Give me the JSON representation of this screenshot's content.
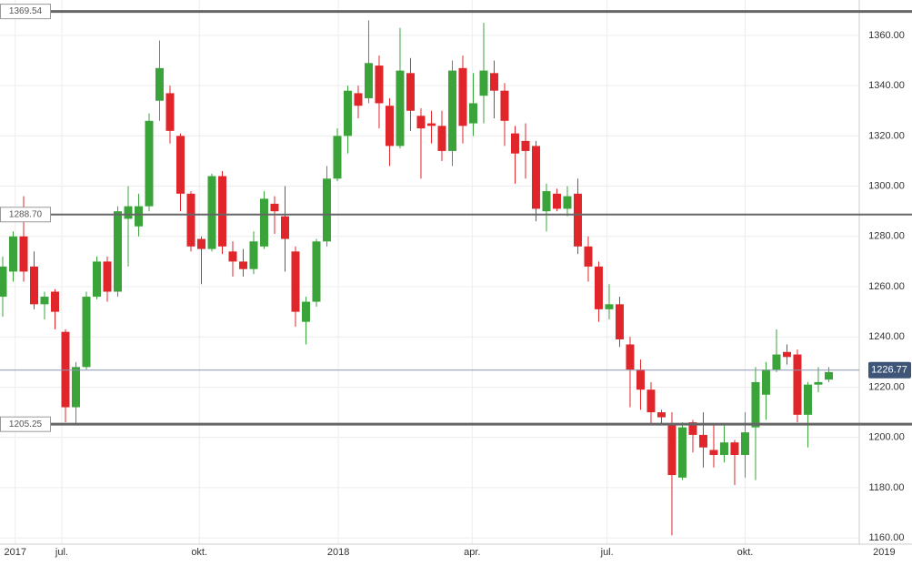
{
  "chart_data": {
    "type": "candlestick",
    "x": [
      0,
      1,
      2,
      3,
      4,
      5,
      6,
      7,
      8,
      9,
      10,
      11,
      12,
      13,
      14,
      15,
      16,
      17,
      18,
      19,
      20,
      21,
      22,
      23,
      24,
      25,
      26,
      27,
      28,
      29,
      30,
      31,
      32,
      33,
      34,
      35,
      36,
      37,
      38,
      39,
      40,
      41,
      42,
      43,
      44,
      45,
      46,
      47,
      48,
      49,
      50,
      51,
      52,
      53,
      54,
      55,
      56,
      57,
      58,
      59,
      60,
      61,
      62,
      63,
      64,
      65,
      66,
      67,
      68,
      69,
      70,
      71,
      72,
      73,
      74,
      75,
      76,
      77,
      78,
      79
    ],
    "open": [
      1256,
      1266,
      1280,
      1268,
      1253,
      1258,
      1242,
      1212,
      1228,
      1256,
      1270,
      1258,
      1287,
      1284,
      1292,
      1334,
      1337,
      1320,
      1297,
      1279,
      1275,
      1304,
      1274,
      1270,
      1267,
      1276,
      1293,
      1288,
      1274,
      1246,
      1254,
      1278,
      1303,
      1320,
      1337,
      1335,
      1348,
      1332,
      1316,
      1345,
      1328,
      1325,
      1324,
      1314,
      1347,
      1325,
      1336,
      1345,
      1338,
      1321,
      1318,
      1316,
      1290,
      1297,
      1291,
      1297,
      1276,
      1268,
      1251,
      1253,
      1237,
      1227,
      1219,
      1210,
      1205,
      1184,
      1206,
      1201,
      1195,
      1193,
      1198,
      1193,
      1204,
      1217,
      1227,
      1234,
      1233,
      1209,
      1221,
      1223
    ],
    "high": [
      1272,
      1282,
      1296,
      1274,
      1258,
      1259,
      1243,
      1230,
      1258,
      1272,
      1272,
      1292,
      1300,
      1297,
      1329,
      1358,
      1340,
      1321,
      1298,
      1280,
      1305,
      1306,
      1278,
      1275,
      1282,
      1298,
      1296,
      1300,
      1276,
      1256,
      1279,
      1308,
      1323,
      1340,
      1340,
      1366,
      1352,
      1335,
      1363,
      1351,
      1331,
      1330,
      1330,
      1350,
      1352,
      1345,
      1365,
      1350,
      1341,
      1324,
      1325,
      1318,
      1301,
      1299,
      1300,
      1303,
      1280,
      1270,
      1261,
      1256,
      1240,
      1231,
      1222,
      1211,
      1210,
      1206,
      1207,
      1210,
      1205,
      1205,
      1199,
      1210,
      1228,
      1230,
      1243,
      1237,
      1235,
      1222,
      1228,
      1228
    ],
    "low": [
      1248,
      1262,
      1262,
      1251,
      1247,
      1243,
      1206,
      1205,
      1227,
      1255,
      1254,
      1256,
      1268,
      1280,
      1290,
      1326,
      1317,
      1290,
      1274,
      1261,
      1274,
      1273,
      1264,
      1264,
      1265,
      1275,
      1281,
      1266,
      1244,
      1237,
      1252,
      1276,
      1302,
      1313,
      1327,
      1333,
      1323,
      1308,
      1315,
      1322,
      1303,
      1317,
      1310,
      1308,
      1317,
      1320,
      1325,
      1327,
      1316,
      1301,
      1303,
      1286,
      1282,
      1290,
      1288,
      1273,
      1262,
      1246,
      1247,
      1236,
      1212,
      1211,
      1205,
      1205,
      1161,
      1183,
      1194,
      1188,
      1188,
      1190,
      1181,
      1184,
      1183,
      1207,
      1226,
      1229,
      1206,
      1196,
      1218,
      1222
    ],
    "close": [
      1268,
      1280,
      1266,
      1253,
      1256,
      1250,
      1212,
      1228,
      1256,
      1270,
      1258,
      1290,
      1292,
      1292,
      1326,
      1347,
      1322,
      1297,
      1276,
      1275,
      1304,
      1276,
      1270,
      1267,
      1278,
      1295,
      1290,
      1279,
      1250,
      1254,
      1278,
      1303,
      1320,
      1338,
      1332,
      1349,
      1333,
      1316,
      1346,
      1330,
      1323,
      1324,
      1314,
      1346,
      1324,
      1333,
      1346,
      1338,
      1326,
      1313,
      1314,
      1291,
      1298,
      1291,
      1296,
      1276,
      1268,
      1251,
      1253,
      1239,
      1227,
      1219,
      1210,
      1208,
      1185,
      1204,
      1201,
      1196,
      1193,
      1198,
      1193,
      1202,
      1222,
      1227,
      1233,
      1232,
      1209,
      1221,
      1222,
      1226
    ],
    "up_color": "#3aa43a",
    "down_color": "#e0262a",
    "xlim": [
      -0.26,
      86.96
    ],
    "xticks": [
      {
        "value": 1.2,
        "label": "2017"
      },
      {
        "value": 5.65,
        "label": "jul."
      },
      {
        "value": 18.8,
        "label": "okt."
      },
      {
        "value": 32.1,
        "label": "2018"
      },
      {
        "value": 44.9,
        "label": "apr."
      },
      {
        "value": 57.8,
        "label": "jul."
      },
      {
        "value": 71.0,
        "label": "okt."
      },
      {
        "value": 84.3,
        "label": "2019"
      }
    ],
    "ylim": [
      1157.5,
      1374.1
    ],
    "yticks": [
      {
        "value": 1160,
        "label": "1160.00"
      },
      {
        "value": 1180,
        "label": "1180.00"
      },
      {
        "value": 1200,
        "label": "1200.00"
      },
      {
        "value": 1220,
        "label": "1220.00"
      },
      {
        "value": 1240,
        "label": "1240.00"
      },
      {
        "value": 1260,
        "label": "1260.00"
      },
      {
        "value": 1280,
        "label": "1280.00"
      },
      {
        "value": 1300,
        "label": "1300.00"
      },
      {
        "value": 1320,
        "label": "1320.00"
      },
      {
        "value": 1340,
        "label": "1340.00"
      },
      {
        "value": 1360,
        "label": "1360.00"
      }
    ],
    "levels": [
      1369.54,
      {
        "value": 1288.7,
        "label": "1288.70"
      },
      1205.25
    ],
    "level_widths": [
      3,
      2,
      3
    ],
    "last_price": 1226.77,
    "grid": true
  }
}
